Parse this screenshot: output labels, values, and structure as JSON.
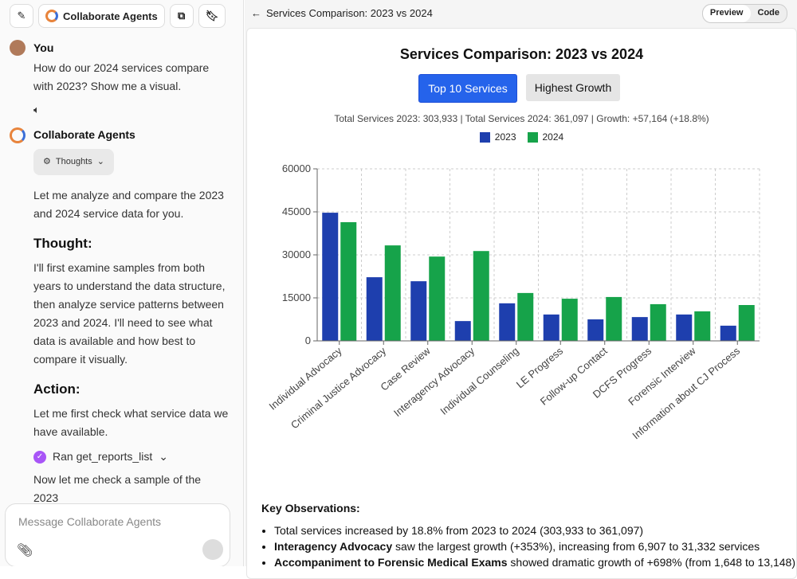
{
  "sidebar": {
    "agent_tab": "Collaborate Agents",
    "user_name": "You",
    "user_message": "How do our 2024 services compare with 2023? Show me a visual.",
    "agent_name": "Collaborate Agents",
    "thoughts_button": "Thoughts",
    "intro": "Let me analyze and compare the 2023 and 2024 service data for you.",
    "thought_heading": "Thought:",
    "thought_text": "I'll first examine samples from both years to understand the data structure, then analyze service patterns between 2023 and 2024. I'll need to see what data is available and how best to compare it visually.",
    "action_heading": "Action:",
    "action_text": "Let me first check what service data we have available.",
    "tool_call": "Ran get_reports_list",
    "next_text": "Now let me check a sample of the 2023",
    "input_placeholder": "Message Collaborate Agents"
  },
  "preview": {
    "header_title": "Services Comparison: 2023 vs 2024",
    "tabs": [
      "Preview",
      "Code"
    ],
    "buttons": [
      "Top 10 Services",
      "Highest Growth"
    ],
    "summary": "Total Services 2023: 303,933 | Total Services 2024: 361,097 | Growth: +57,164 (+18.8%)",
    "observations_heading": "Key Observations:",
    "observations": [
      {
        "text": "Total services increased by 18.8% from 2023 to 2024 (303,933 to 361,097)"
      },
      {
        "bold": "Interagency Advocacy",
        "text": "saw the largest growth (+353%), increasing from 6,907 to 31,332 services"
      },
      {
        "bold": "Accompaniment to Forensic Medical Exams",
        "text": "showed dramatic growth of +698% (from 1,648 to 13,148)"
      }
    ]
  },
  "chart_data": {
    "type": "bar",
    "title": "Services Comparison: 2023 vs 2024",
    "categories": [
      "Individual Advocacy",
      "Criminal Justice Advocacy",
      "Case Review",
      "Interagency Advocacy",
      "Individual Counseling",
      "LE Progress",
      "Follow-up Contact",
      "DCFS Progress",
      "Forensic Interview",
      "Information about CJ Process"
    ],
    "series": [
      {
        "name": "2023",
        "color": "#1e3fae",
        "values": [
          44700,
          22200,
          20800,
          6907,
          13100,
          9200,
          7500,
          8300,
          9200,
          5300
        ]
      },
      {
        "name": "2024",
        "color": "#16a34a",
        "values": [
          41400,
          33300,
          29400,
          31332,
          16700,
          14700,
          15300,
          12800,
          10300,
          12500
        ]
      }
    ],
    "ylim": [
      0,
      60000
    ],
    "yticks": [
      0,
      15000,
      30000,
      45000,
      60000
    ],
    "grid": true
  }
}
